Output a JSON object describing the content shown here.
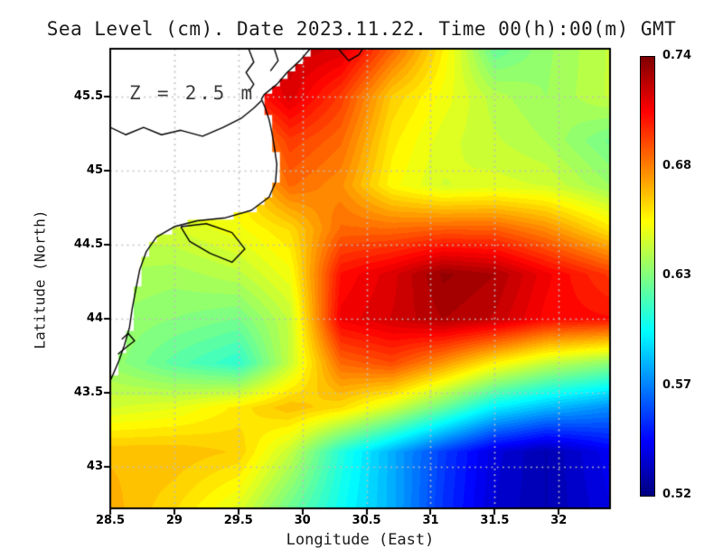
{
  "title": "Sea Level (cm). Date 2023.11.22. Time 00(h):00(m) GMT",
  "annotation": "Z = 2.5 m",
  "axes": {
    "xlabel": "Longitude (East)",
    "ylabel": "Latitude (North)",
    "lon_min": 28.5,
    "lon_max": 32.4,
    "lat_min": 42.72,
    "lat_max": 45.82,
    "x_ticks": [
      {
        "label": "28.5",
        "value": 28.5
      },
      {
        "label": "29",
        "value": 29.0
      },
      {
        "label": "29.5",
        "value": 29.5
      },
      {
        "label": "30",
        "value": 30.0
      },
      {
        "label": "30.5",
        "value": 30.5
      },
      {
        "label": "31",
        "value": 31.0
      },
      {
        "label": "31.5",
        "value": 31.5
      },
      {
        "label": "32",
        "value": 32.0
      }
    ],
    "y_ticks": [
      {
        "label": "45.5",
        "value": 45.5
      },
      {
        "label": "45",
        "value": 45.0
      },
      {
        "label": "44.5",
        "value": 44.5
      },
      {
        "label": "44",
        "value": 44.0
      },
      {
        "label": "43.5",
        "value": 43.5
      },
      {
        "label": "43",
        "value": 43.0
      }
    ],
    "grid_step_deg": 0.5
  },
  "colorbar": {
    "vmin": 0.52,
    "vmax": 0.74,
    "ticks": [
      {
        "label": "0.74",
        "frac_from_top": 0.0
      },
      {
        "label": "0.68",
        "frac_from_top": 0.25
      },
      {
        "label": "0.63",
        "frac_from_top": 0.5
      },
      {
        "label": "0.57",
        "frac_from_top": 0.75
      },
      {
        "label": "0.52",
        "frac_from_top": 1.0
      }
    ]
  },
  "colors": {
    "frame": "#000000",
    "land": "#ffffff",
    "coastline": "#000000",
    "gridline": "#bebebe",
    "annotation_text": "#3f3f3f"
  },
  "chart_data": {
    "type": "heatmap",
    "quantity": "sea level",
    "units": "cm",
    "vmin": 0.52,
    "vmax": 0.74,
    "colormap": "jet",
    "colormap_stops": [
      [
        0.0,
        [
          0,
          0,
          127
        ]
      ],
      [
        0.125,
        [
          0,
          0,
          255
        ]
      ],
      [
        0.375,
        [
          0,
          255,
          255
        ]
      ],
      [
        0.625,
        [
          255,
          255,
          0
        ]
      ],
      [
        0.875,
        [
          255,
          0,
          0
        ]
      ],
      [
        1.0,
        [
          127,
          0,
          0
        ]
      ]
    ],
    "lons": [
      28.5,
      29.0,
      29.5,
      29.9,
      30.3,
      30.7,
      31.1,
      31.5,
      31.9,
      32.4
    ],
    "lats": [
      45.8,
      45.5,
      45.2,
      44.9,
      44.6,
      44.3,
      44.0,
      43.7,
      43.4,
      43.1,
      42.7
    ],
    "values": [
      [
        0.68,
        0.68,
        0.71,
        0.725,
        0.72,
        0.69,
        0.66,
        0.625,
        0.635,
        0.645
      ],
      [
        0.67,
        0.67,
        0.7,
        0.72,
        0.7,
        0.668,
        0.655,
        0.642,
        0.636,
        0.645
      ],
      [
        0.665,
        0.665,
        0.672,
        0.7,
        0.69,
        0.662,
        0.65,
        0.645,
        0.64,
        0.627
      ],
      [
        0.658,
        0.658,
        0.662,
        0.69,
        0.682,
        0.658,
        0.648,
        0.65,
        0.648,
        0.636
      ],
      [
        0.645,
        0.648,
        0.655,
        0.665,
        0.69,
        0.69,
        0.693,
        0.693,
        0.683,
        0.663
      ],
      [
        0.64,
        0.638,
        0.643,
        0.655,
        0.71,
        0.72,
        0.735,
        0.73,
        0.715,
        0.7
      ],
      [
        0.636,
        0.632,
        0.628,
        0.645,
        0.715,
        0.722,
        0.73,
        0.725,
        0.712,
        0.71
      ],
      [
        0.635,
        0.622,
        0.612,
        0.645,
        0.69,
        0.697,
        0.68,
        0.66,
        0.645,
        0.633
      ],
      [
        0.648,
        0.652,
        0.662,
        0.672,
        0.665,
        0.648,
        0.625,
        0.6,
        0.588,
        0.578
      ],
      [
        0.672,
        0.672,
        0.668,
        0.645,
        0.61,
        0.585,
        0.56,
        0.54,
        0.53,
        0.545
      ],
      [
        0.675,
        0.665,
        0.65,
        0.625,
        0.605,
        0.585,
        0.558,
        0.538,
        0.53,
        0.542
      ]
    ],
    "land_polygon": [
      [
        28.5,
        45.82
      ],
      [
        30.06,
        45.82
      ],
      [
        29.98,
        45.74
      ],
      [
        29.88,
        45.66
      ],
      [
        29.8,
        45.58
      ],
      [
        29.7,
        45.51
      ],
      [
        29.68,
        45.48
      ],
      [
        29.71,
        45.42
      ],
      [
        29.74,
        45.34
      ],
      [
        29.76,
        45.26
      ],
      [
        29.78,
        45.16
      ],
      [
        29.8,
        45.04
      ],
      [
        29.79,
        44.92
      ],
      [
        29.74,
        44.82
      ],
      [
        29.6,
        44.73
      ],
      [
        29.4,
        44.68
      ],
      [
        29.18,
        44.66
      ],
      [
        29.0,
        44.62
      ],
      [
        28.86,
        44.55
      ],
      [
        28.78,
        44.45
      ],
      [
        28.73,
        44.33
      ],
      [
        28.7,
        44.2
      ],
      [
        28.67,
        44.06
      ],
      [
        28.65,
        43.94
      ],
      [
        28.61,
        43.82
      ],
      [
        28.57,
        43.72
      ],
      [
        28.52,
        43.62
      ],
      [
        28.5,
        43.58
      ]
    ],
    "coastlines": [
      [
        [
          30.06,
          45.82
        ],
        [
          29.98,
          45.74
        ],
        [
          29.88,
          45.66
        ],
        [
          29.8,
          45.58
        ],
        [
          29.7,
          45.51
        ],
        [
          29.68,
          45.48
        ],
        [
          29.71,
          45.42
        ],
        [
          29.74,
          45.34
        ],
        [
          29.76,
          45.26
        ],
        [
          29.78,
          45.16
        ],
        [
          29.8,
          45.04
        ],
        [
          29.79,
          44.92
        ],
        [
          29.74,
          44.82
        ],
        [
          29.6,
          44.73
        ],
        [
          29.4,
          44.68
        ],
        [
          29.18,
          44.66
        ],
        [
          29.0,
          44.62
        ],
        [
          28.86,
          44.55
        ],
        [
          28.78,
          44.45
        ],
        [
          28.73,
          44.33
        ],
        [
          28.7,
          44.2
        ],
        [
          28.67,
          44.06
        ],
        [
          28.65,
          43.94
        ],
        [
          28.61,
          43.82
        ],
        [
          28.57,
          43.72
        ],
        [
          28.52,
          43.62
        ],
        [
          28.5,
          43.58
        ]
      ],
      [
        [
          29.05,
          44.62
        ],
        [
          29.25,
          44.64
        ],
        [
          29.45,
          44.58
        ],
        [
          29.55,
          44.47
        ],
        [
          29.45,
          44.38
        ],
        [
          29.28,
          44.44
        ],
        [
          29.12,
          44.52
        ],
        [
          29.05,
          44.62
        ]
      ],
      [
        [
          28.5,
          45.29
        ],
        [
          28.62,
          45.24
        ],
        [
          28.76,
          45.29
        ],
        [
          28.9,
          45.24
        ],
        [
          29.05,
          45.27
        ],
        [
          29.22,
          45.23
        ],
        [
          29.38,
          45.29
        ],
        [
          29.52,
          45.35
        ],
        [
          29.62,
          45.42
        ],
        [
          29.68,
          45.47
        ]
      ],
      [
        [
          29.58,
          45.82
        ],
        [
          29.62,
          45.73
        ],
        [
          29.56,
          45.66
        ],
        [
          29.62,
          45.58
        ],
        [
          29.58,
          45.53
        ]
      ],
      [
        [
          29.78,
          45.82
        ],
        [
          29.81,
          45.74
        ],
        [
          29.75,
          45.67
        ]
      ],
      [
        [
          30.28,
          45.82
        ],
        [
          30.36,
          45.74
        ],
        [
          30.44,
          45.78
        ],
        [
          30.47,
          45.82
        ]
      ],
      [
        [
          28.56,
          43.76
        ],
        [
          28.63,
          43.81
        ],
        [
          28.69,
          43.85
        ],
        [
          28.64,
          43.9
        ],
        [
          28.59,
          43.86
        ]
      ]
    ]
  }
}
